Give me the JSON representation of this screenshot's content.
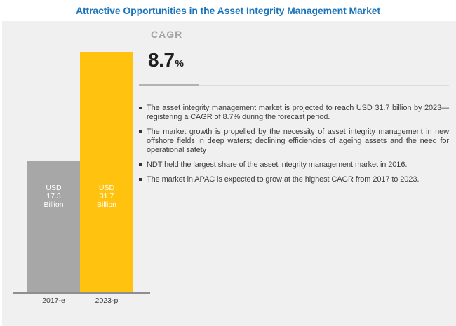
{
  "title": "Attractive Opportunities in the Asset Integrity Management Market",
  "cagr": {
    "label": "CAGR",
    "value": "8.7",
    "unit": "%"
  },
  "bullets": [
    "The asset integrity management market is projected to reach USD 31.7 billion by 2023—registering a CAGR of 8.7% during the forecast period.",
    "The market growth is propelled by the necessity of asset integrity management in new offshore fields in deep waters; declining efficiencies of ageing assets and the need for operational safety",
    "NDT held the largest share of the asset integrity management market in 2016.",
    "The market in APAC is expected to grow at the highest CAGR from 2017 to 2023."
  ],
  "chart_data": {
    "type": "bar",
    "categories": [
      "2017-e",
      "2023-p"
    ],
    "values": [
      17.3,
      31.7
    ],
    "ylabel": "USD Billion",
    "ylim": [
      0,
      31.7
    ],
    "grid": false,
    "legend": "none",
    "bars": [
      {
        "category": "2017-e",
        "value": 17.3,
        "label_lines": [
          "USD",
          "17.3",
          "Billion"
        ],
        "color": "#a7a7a7"
      },
      {
        "category": "2023-p",
        "value": 31.7,
        "label_lines": [
          "USD",
          "31.7",
          "Billion"
        ],
        "color": "#ffc20e"
      }
    ]
  },
  "colors": {
    "title_blue": "#1c75bc",
    "panel_bg": "#f0f0f1",
    "bar_gray": "#a7a7a7",
    "bar_yellow": "#ffc20e",
    "axis_gray": "#8f8f8f",
    "text_dark": "#3d3d3d",
    "cagr_gray": "#a3a3a3",
    "value_dark": "#1f1f1f"
  }
}
